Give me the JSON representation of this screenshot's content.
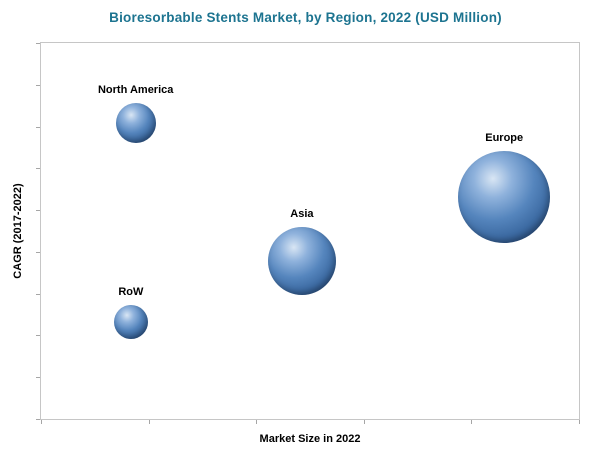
{
  "title": "Bioresorbable Stents Market, by Region, 2022 (USD Million)",
  "colors": {
    "title_text": "#1d7490",
    "bubble_base": "#4f81bd",
    "axis_border": "#c6c6c6",
    "label_text": "#000000"
  },
  "chart_data": {
    "type": "scatter",
    "subtype": "bubble",
    "title": "Bioresorbable Stents Market, by Region, 2022 (USD Million)",
    "xlabel": "Market Size in 2022",
    "ylabel": "CAGR (2017-2022)",
    "axis_numeric_labels": false,
    "x_range": [
      0,
      1
    ],
    "y_range": [
      0,
      1
    ],
    "x_tick_count": 6,
    "y_tick_count": 10,
    "legend": "none",
    "grid": false,
    "points": [
      {
        "label": "North America",
        "x": 0.176,
        "y": 0.786,
        "r": 20
      },
      {
        "label": "Europe",
        "x": 0.861,
        "y": 0.59,
        "r": 46
      },
      {
        "label": "Asia",
        "x": 0.485,
        "y": 0.421,
        "r": 34
      },
      {
        "label": "RoW",
        "x": 0.167,
        "y": 0.259,
        "r": 17
      }
    ]
  }
}
